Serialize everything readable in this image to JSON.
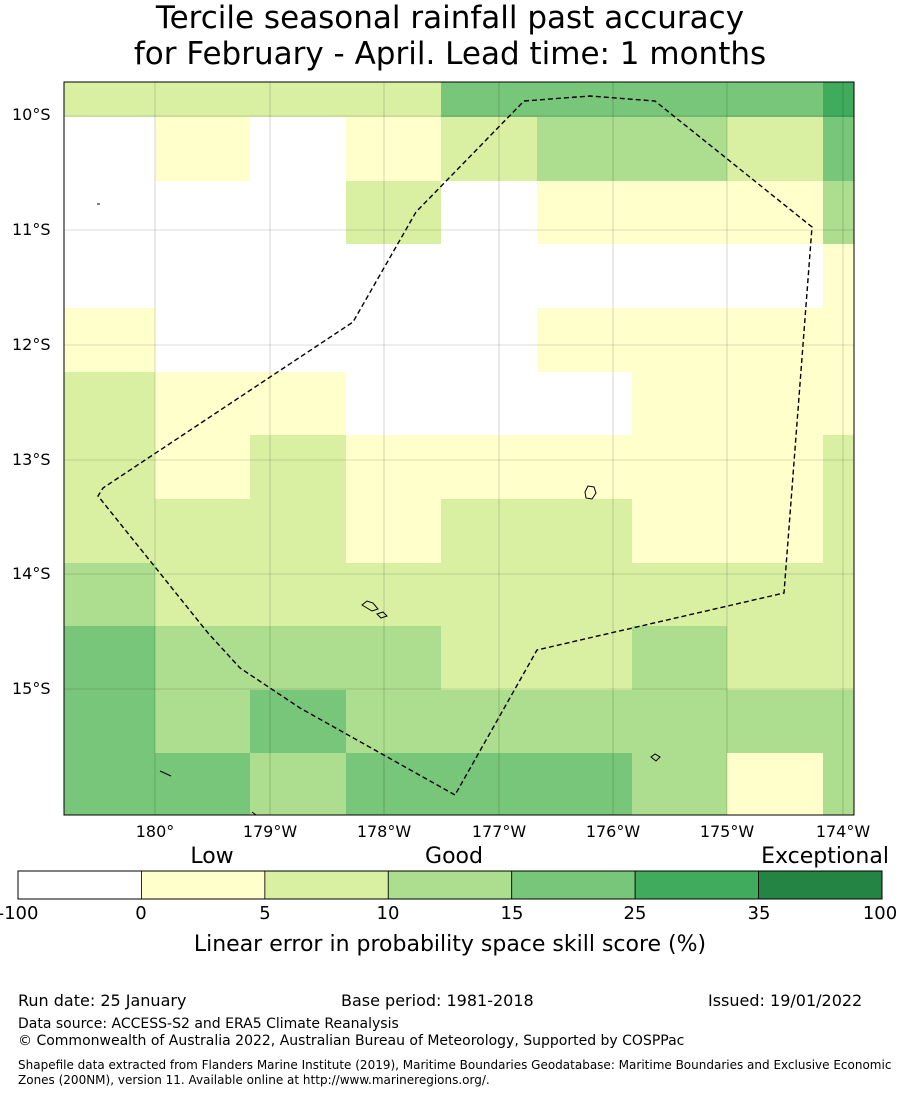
{
  "title": {
    "line1": "Tercile seasonal rainfall past accuracy",
    "line2": "for February - April. Lead time: 1 months"
  },
  "map": {
    "lat_labels": [
      "10°S",
      "11°S",
      "12°S",
      "13°S",
      "14°S",
      "15°S"
    ],
    "lon_labels": [
      "180°",
      "179°W",
      "178°W",
      "177°W",
      "176°W",
      "175°W",
      "174°W"
    ],
    "colors": {
      "class_0": "#ffffff",
      "class_1": "#ffffcc",
      "class_2": "#d9f0a3",
      "class_3": "#addd8e",
      "class_4": "#78c679",
      "class_5": "#41ab5d",
      "class_6": "#238443"
    }
  },
  "legend": {
    "categories": [
      "Low",
      "Good",
      "Exceptional"
    ],
    "ticks": [
      "-100",
      "0",
      "5",
      "10",
      "15",
      "25",
      "35",
      "100"
    ],
    "title": "Linear error in probability space skill score (%)"
  },
  "footer": {
    "run_date": "Run date: 25 January",
    "base_period": "Base period: 1981-2018",
    "issued": "Issued: 19/01/2022",
    "data_source": "Data source: ACCESS-S2 and ERA5 Climate Reanalysis",
    "copyright": "© Commonwealth of Australia 2022, Australian Bureau of Meteorology, Supported by COSPPac",
    "shapefile": "Shapefile data extracted from Flanders Marine Institute (2019), Maritime Boundaries Geodatabase: Maritime Boundaries and Exclusive Economic Zones (200NM), version 11. Available online at http://www.marineregions.org/."
  }
}
